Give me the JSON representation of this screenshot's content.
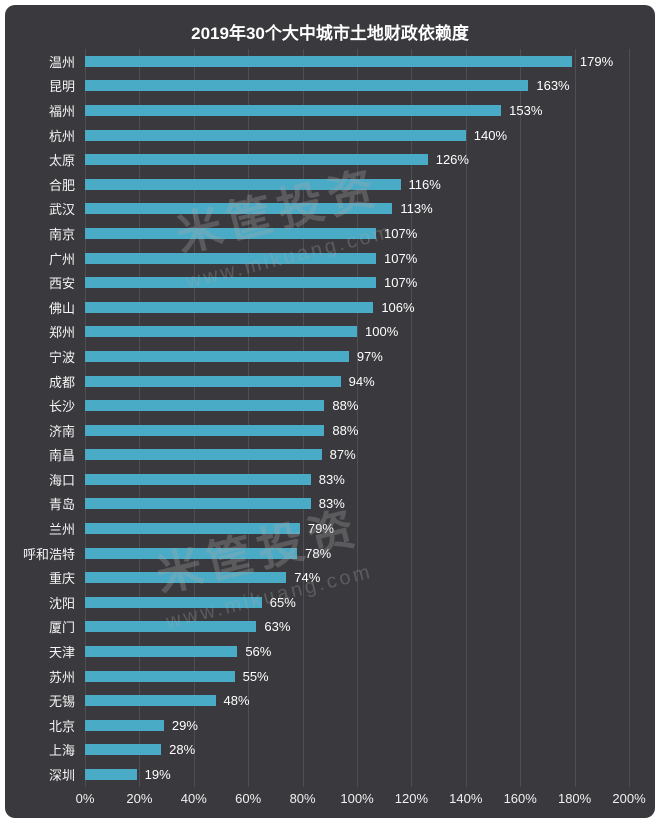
{
  "colors": {
    "background": "#3a3a3e",
    "bar": "#4aabc7",
    "grid": "#4e4e54",
    "text": "#f5f5f5"
  },
  "watermark": {
    "brand": "米筐投资",
    "site": "www.mikuang.com"
  },
  "chart_data": {
    "type": "bar",
    "orientation": "horizontal",
    "title": "2019年30个大中城市土地财政依赖度",
    "categories": [
      "温州",
      "昆明",
      "福州",
      "杭州",
      "太原",
      "合肥",
      "武汉",
      "南京",
      "广州",
      "西安",
      "佛山",
      "郑州",
      "宁波",
      "成都",
      "长沙",
      "济南",
      "南昌",
      "海口",
      "青岛",
      "兰州",
      "呼和浩特",
      "重庆",
      "沈阳",
      "厦门",
      "天津",
      "苏州",
      "无锡",
      "北京",
      "上海",
      "深圳"
    ],
    "values": [
      179,
      163,
      153,
      140,
      126,
      116,
      113,
      107,
      107,
      107,
      106,
      100,
      97,
      94,
      88,
      88,
      87,
      83,
      83,
      79,
      78,
      74,
      65,
      63,
      56,
      55,
      48,
      29,
      28,
      19
    ],
    "value_suffix": "%",
    "xlabel": "",
    "ylabel": "",
    "xlim": [
      0,
      200
    ],
    "x_ticks": [
      "0%",
      "20%",
      "40%",
      "60%",
      "80%",
      "100%",
      "120%",
      "140%",
      "160%",
      "180%",
      "200%"
    ],
    "grid": true,
    "legend": "none"
  }
}
